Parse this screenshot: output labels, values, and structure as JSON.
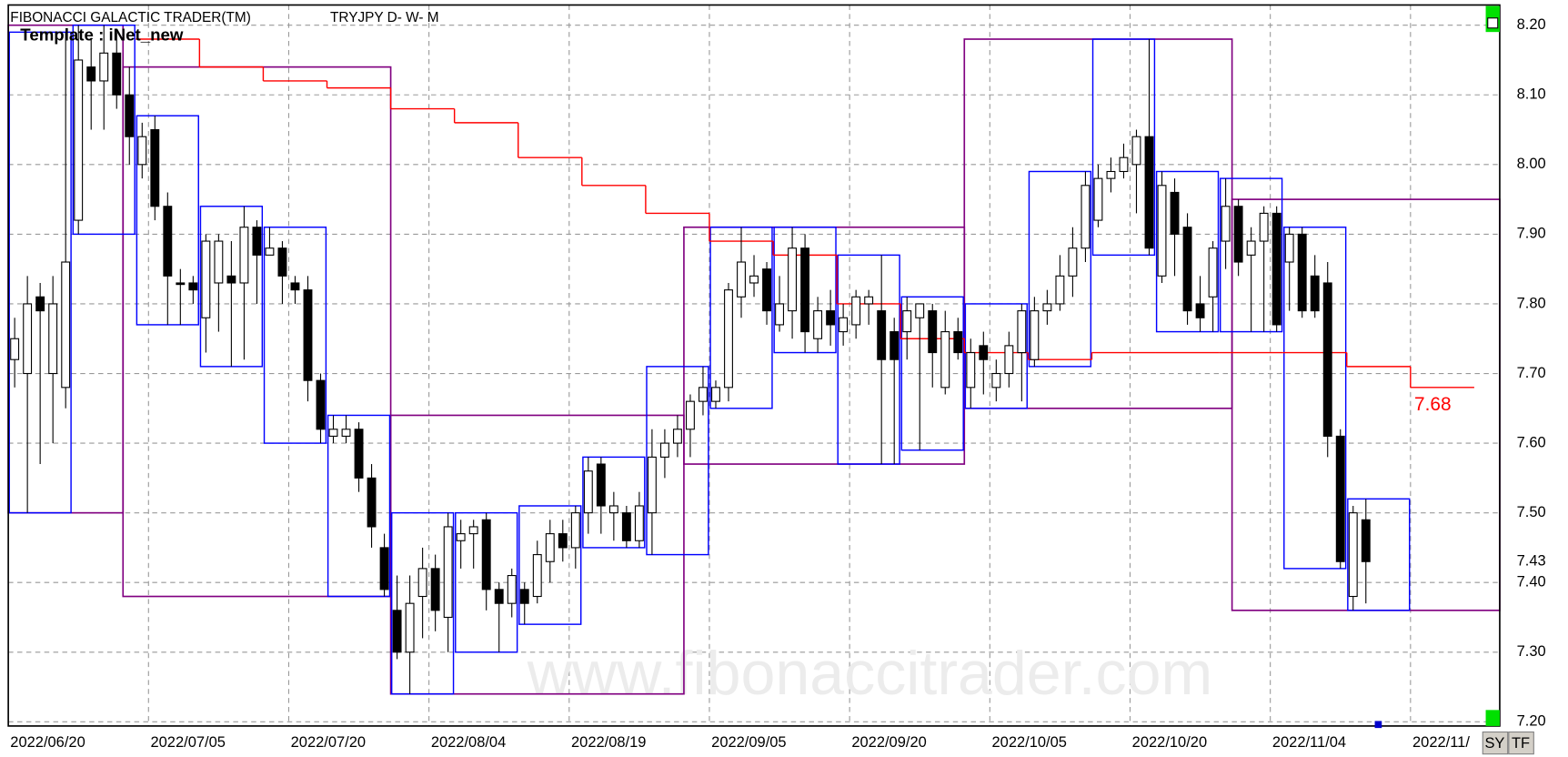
{
  "chart_data": {
    "type": "candlestick",
    "title": "FIBONACCI GALACTIC TRADER(TM)",
    "subtitle": "TRYJPY D- W- M",
    "template_label": "Template : iNet_new",
    "watermark": "www.fibonaccitrader.com",
    "buttons": [
      "SY",
      "TF"
    ],
    "categories": [
      "2022/06/20",
      null,
      null,
      null,
      null,
      null,
      null,
      null,
      null,
      null,
      null,
      "2022/07/05",
      null,
      null,
      null,
      null,
      null,
      null,
      null,
      null,
      null,
      null,
      "2022/07/20",
      null,
      null,
      null,
      null,
      null,
      null,
      null,
      null,
      null,
      null,
      "2022/08/04",
      null,
      null,
      null,
      null,
      null,
      null,
      null,
      null,
      null,
      null,
      "2022/08/19",
      null,
      null,
      null,
      null,
      null,
      null,
      null,
      null,
      null,
      null,
      "2022/09/05",
      null,
      null,
      null,
      null,
      null,
      null,
      null,
      null,
      null,
      null,
      "2022/09/20",
      null,
      null,
      null,
      null,
      null,
      null,
      null,
      null,
      null,
      null,
      "2022/10/05",
      null,
      null,
      null,
      null,
      null,
      null,
      null,
      null,
      null,
      null,
      "2022/10/20",
      null,
      null,
      null,
      null,
      null,
      null,
      null,
      null,
      null,
      null,
      "2022/11/04",
      null,
      null,
      null,
      null,
      null,
      null,
      null,
      null,
      null,
      null,
      "2022/11/",
      null,
      null,
      null,
      null,
      null,
      null
    ],
    "open": [
      7.72,
      7.7,
      7.81,
      7.7,
      7.68,
      7.92,
      8.14,
      8.12,
      8.16,
      8.1,
      8.0,
      8.05,
      7.94,
      7.83,
      7.83,
      7.78,
      7.83,
      7.84,
      7.83,
      7.91,
      7.87,
      7.88,
      7.83,
      7.82,
      7.69,
      7.61,
      7.61,
      7.62,
      7.55,
      7.45,
      7.36,
      7.3,
      7.38,
      7.42,
      7.35,
      7.46,
      7.47,
      7.49,
      7.39,
      7.37,
      7.39,
      7.38,
      7.43,
      7.47,
      7.45,
      7.5,
      7.57,
      7.5,
      7.5,
      7.46,
      7.5,
      7.58,
      7.6,
      7.62,
      7.66,
      7.66,
      7.68,
      7.81,
      7.83,
      7.85,
      7.77,
      7.79,
      7.88,
      7.75,
      7.79,
      7.76,
      7.77,
      7.8,
      7.79,
      7.76,
      7.76,
      7.78,
      7.79,
      7.68,
      7.76,
      7.68,
      7.74,
      7.68,
      7.7,
      7.73,
      7.72,
      7.79,
      7.8,
      7.84,
      7.88,
      7.92,
      7.98,
      7.99,
      8.0,
      8.04,
      7.84,
      7.96,
      7.91,
      7.8,
      7.81,
      7.89,
      7.94,
      7.87,
      7.89,
      7.93,
      7.86,
      7.9,
      7.84,
      7.83,
      7.61,
      7.38,
      7.49,
      null,
      null,
      null,
      null,
      null,
      null,
      null,
      null,
      null,
      null
    ],
    "high": [
      7.78,
      7.84,
      7.83,
      7.84,
      8.19,
      8.2,
      8.18,
      8.2,
      8.19,
      8.14,
      8.06,
      8.07,
      7.96,
      7.85,
      7.84,
      7.9,
      7.9,
      7.89,
      7.94,
      7.92,
      7.91,
      7.89,
      7.84,
      7.84,
      7.7,
      7.64,
      7.64,
      7.63,
      7.57,
      7.47,
      7.41,
      7.41,
      7.45,
      7.44,
      7.5,
      7.49,
      7.49,
      7.5,
      7.4,
      7.42,
      7.4,
      7.46,
      7.49,
      7.49,
      7.51,
      7.58,
      7.58,
      7.53,
      7.51,
      7.53,
      7.62,
      7.62,
      7.64,
      7.67,
      7.71,
      7.69,
      7.83,
      7.91,
      7.87,
      7.86,
      7.84,
      7.91,
      7.9,
      7.81,
      7.82,
      7.8,
      7.82,
      7.82,
      7.87,
      7.78,
      7.81,
      7.8,
      7.8,
      7.79,
      7.78,
      7.75,
      7.76,
      7.72,
      7.76,
      7.8,
      7.81,
      7.82,
      7.87,
      7.91,
      7.99,
      8.0,
      8.01,
      8.03,
      8.05,
      8.18,
      7.99,
      7.98,
      7.93,
      7.84,
      7.89,
      7.98,
      7.95,
      7.91,
      7.94,
      7.94,
      7.91,
      7.91,
      7.87,
      7.86,
      7.62,
      7.51,
      7.52,
      null,
      null,
      null,
      null,
      null,
      null,
      null,
      null,
      null,
      null
    ],
    "low": [
      7.68,
      7.5,
      7.57,
      7.6,
      7.65,
      7.9,
      8.05,
      8.05,
      8.08,
      8.0,
      7.98,
      7.92,
      7.77,
      7.77,
      7.8,
      7.73,
      7.76,
      7.71,
      7.72,
      7.8,
      7.87,
      7.8,
      7.8,
      7.66,
      7.6,
      7.6,
      7.6,
      7.53,
      7.45,
      7.38,
      7.29,
      7.24,
      7.32,
      7.33,
      7.3,
      7.42,
      7.42,
      7.36,
      7.3,
      7.35,
      7.34,
      7.37,
      7.4,
      7.43,
      7.42,
      7.47,
      7.47,
      7.46,
      7.45,
      7.45,
      7.44,
      7.55,
      7.58,
      7.58,
      7.64,
      7.65,
      7.66,
      7.78,
      7.81,
      7.77,
      7.76,
      7.75,
      7.73,
      7.73,
      7.74,
      7.74,
      7.75,
      7.77,
      7.57,
      7.57,
      7.72,
      7.59,
      7.68,
      7.67,
      7.72,
      7.65,
      7.67,
      7.66,
      7.68,
      7.66,
      7.71,
      7.77,
      7.79,
      7.81,
      7.86,
      7.91,
      7.96,
      7.98,
      7.93,
      7.87,
      7.83,
      7.84,
      7.77,
      7.76,
      7.76,
      7.85,
      7.84,
      7.76,
      7.76,
      7.76,
      7.79,
      7.78,
      7.78,
      7.58,
      7.42,
      7.36,
      7.37,
      null,
      null,
      null,
      null,
      null,
      null,
      null,
      null,
      null,
      null
    ],
    "close": [
      7.75,
      7.8,
      7.79,
      7.8,
      7.86,
      8.15,
      8.12,
      8.16,
      8.1,
      8.04,
      8.04,
      7.94,
      7.84,
      7.83,
      7.82,
      7.89,
      7.89,
      7.83,
      7.91,
      7.87,
      7.88,
      7.84,
      7.82,
      7.69,
      7.62,
      7.62,
      7.62,
      7.55,
      7.48,
      7.39,
      7.3,
      7.37,
      7.42,
      7.36,
      7.48,
      7.47,
      7.48,
      7.39,
      7.37,
      7.41,
      7.37,
      7.44,
      7.47,
      7.45,
      7.5,
      7.56,
      7.51,
      7.51,
      7.46,
      7.51,
      7.58,
      7.6,
      7.62,
      7.66,
      7.68,
      7.68,
      7.82,
      7.86,
      7.84,
      7.79,
      7.8,
      7.88,
      7.76,
      7.79,
      7.77,
      7.78,
      7.81,
      7.81,
      7.72,
      7.72,
      7.79,
      7.8,
      7.73,
      7.76,
      7.73,
      7.73,
      7.72,
      7.7,
      7.74,
      7.79,
      7.79,
      7.8,
      7.84,
      7.88,
      7.97,
      7.98,
      7.99,
      8.01,
      8.04,
      7.88,
      7.97,
      7.9,
      7.79,
      7.78,
      7.88,
      7.94,
      7.86,
      7.89,
      7.93,
      7.77,
      7.9,
      7.79,
      7.79,
      7.61,
      7.43,
      7.5,
      7.43,
      null,
      null,
      null,
      null,
      null,
      null,
      null,
      null,
      null,
      null
    ],
    "up_color": "#ffffff",
    "down_color": "#000000",
    "weekly_box_color": "#0000ff",
    "monthly_box_color": "#800080",
    "stop_line": {
      "color": "#ff0000",
      "values": [
        null,
        null,
        8.18,
        8.14,
        8.12,
        8.11,
        8.08,
        8.06,
        8.01,
        7.97,
        7.93,
        7.89,
        7.87,
        7.8,
        7.75,
        7.73,
        7.72,
        7.73,
        7.73,
        7.73,
        7.73,
        7.71,
        7.68
      ]
    },
    "ylim": [
      7.194,
      8.229
    ],
    "yticks": [
      {
        "value": 7.2,
        "label": "7.20"
      },
      {
        "value": 7.3,
        "label": "7.30"
      },
      {
        "value": 7.4,
        "label": "7.40"
      },
      {
        "value": 7.5,
        "label": "7.50"
      },
      {
        "value": 7.6,
        "label": "7.60"
      },
      {
        "value": 7.7,
        "label": "7.70"
      },
      {
        "value": 7.8,
        "label": "7.80"
      },
      {
        "value": 7.9,
        "label": "7.90"
      },
      {
        "value": 8.0,
        "label": "8.00"
      },
      {
        "value": 8.1,
        "label": "8.10"
      },
      {
        "value": 8.2,
        "label": "8.20"
      }
    ],
    "grid": true
  }
}
